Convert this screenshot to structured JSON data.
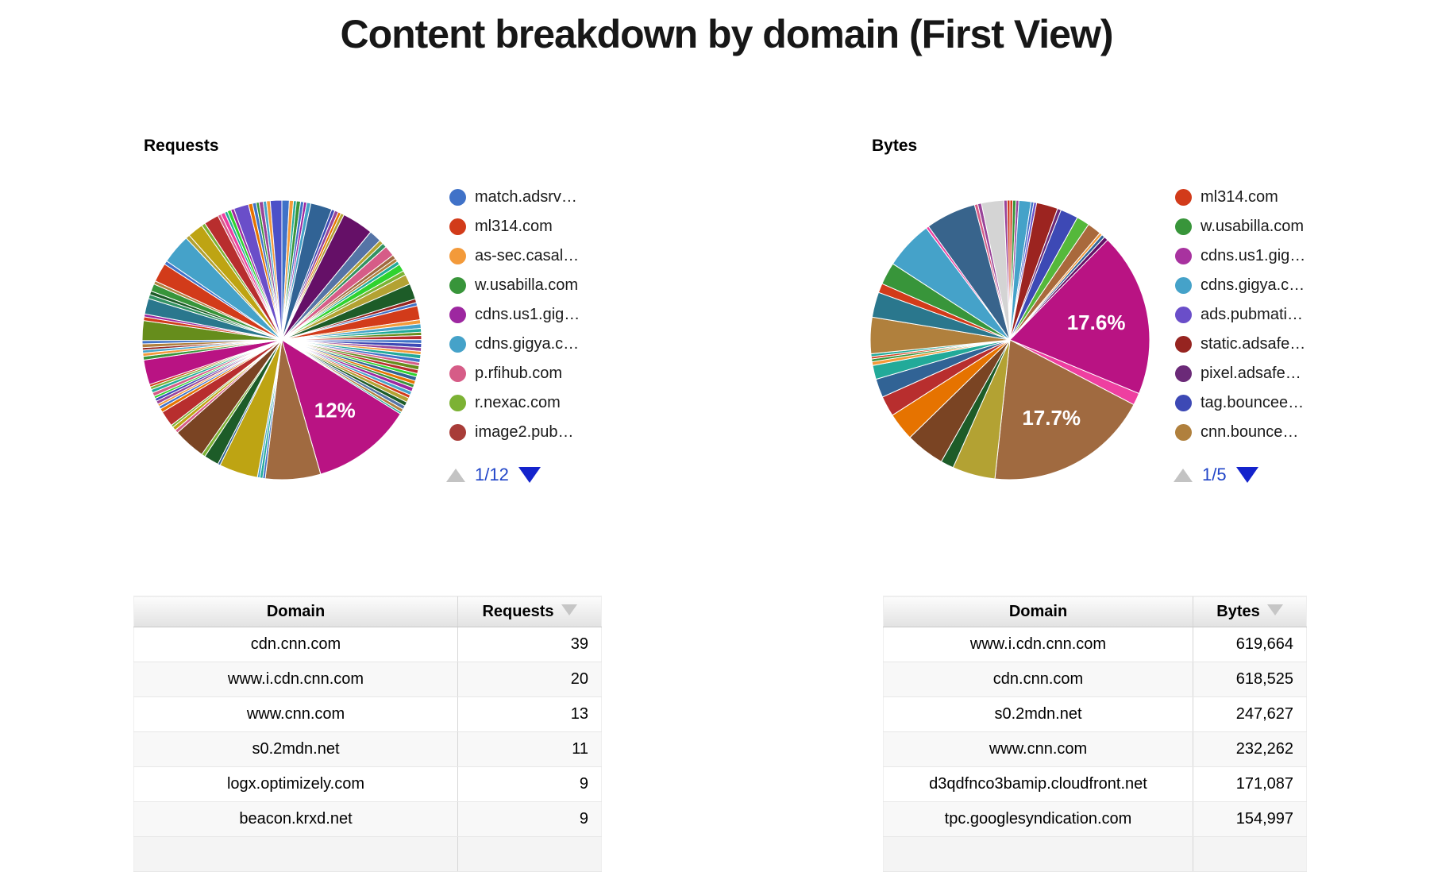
{
  "title": "Content breakdown by domain (First View)",
  "charts": [
    {
      "label": "Requests",
      "pager": {
        "up_icon": "triangle-up",
        "down_icon": "triangle-down"
      },
      "chart_data": {
        "type": "pie",
        "title": "Requests",
        "unit": "share of requests (%)",
        "legend_page": "1/12",
        "legend_visible": [
          {
            "label": "match.adsrv…",
            "color": "#4072c8"
          },
          {
            "label": "ml314.com",
            "color": "#d23b1a"
          },
          {
            "label": "as-sec.casal…",
            "color": "#f39a3a"
          },
          {
            "label": "w.usabilla.com",
            "color": "#38953a"
          },
          {
            "label": "cdns.us1.gig…",
            "color": "#9d27a0"
          },
          {
            "label": "cdns.gigya.c…",
            "color": "#45a2c9"
          },
          {
            "label": "p.rfihub.com",
            "color": "#d65c87"
          },
          {
            "label": "r.nexac.com",
            "color": "#7cb234"
          },
          {
            "label": "image2.pub…",
            "color": "#a83c38"
          }
        ],
        "slices": [
          [
            0.9,
            "#4072c8"
          ],
          [
            0.5,
            "#f39a3a"
          ],
          [
            0.35,
            "#22aa99"
          ],
          [
            0.5,
            "#38953a"
          ],
          [
            0.4,
            "#4072c8"
          ],
          [
            0.35,
            "#9d27a0"
          ],
          [
            0.5,
            "#45a2c9"
          ],
          [
            2.6,
            "#316395"
          ],
          [
            0.4,
            "#3d49b5"
          ],
          [
            0.45,
            "#994499"
          ],
          [
            0.35,
            "#e67300"
          ],
          [
            0.4,
            "#b3a233"
          ],
          [
            3.8,
            "#651067"
          ],
          [
            1.5,
            "#5574a6"
          ],
          [
            0.5,
            "#b3a233"
          ],
          [
            0.55,
            "#329262"
          ],
          [
            1.3,
            "#d65c87"
          ],
          [
            0.5,
            "#a06a40"
          ],
          [
            0.4,
            "#b0803d"
          ],
          [
            0.45,
            "#22aa99"
          ],
          [
            0.9,
            "#2fd32f"
          ],
          [
            0.55,
            "#7cb234"
          ],
          [
            1.2,
            "#b3a233"
          ],
          [
            1.9,
            "#1d5c28"
          ],
          [
            0.45,
            "#962420"
          ],
          [
            0.4,
            "#4072c8"
          ],
          [
            1.7,
            "#d23b1a"
          ],
          [
            0.5,
            "#f39a3a"
          ],
          [
            0.55,
            "#45a2c9"
          ],
          [
            0.45,
            "#22aa99"
          ],
          [
            0.4,
            "#668d1c"
          ],
          [
            0.5,
            "#b82e2e"
          ],
          [
            0.45,
            "#4072c8"
          ],
          [
            0.5,
            "#3d49b5"
          ],
          [
            0.45,
            "#994499"
          ],
          [
            0.4,
            "#f39a3a"
          ],
          [
            0.5,
            "#22aa99"
          ],
          [
            0.45,
            "#4072c8"
          ],
          [
            0.4,
            "#d65c87"
          ],
          [
            0.5,
            "#668d1c"
          ],
          [
            0.45,
            "#b82e2e"
          ],
          [
            0.4,
            "#2fd32f"
          ],
          [
            0.5,
            "#316395"
          ],
          [
            0.45,
            "#e67300"
          ],
          [
            0.4,
            "#38953a"
          ],
          [
            0.5,
            "#9d27a0"
          ],
          [
            0.45,
            "#45a2c9"
          ],
          [
            0.4,
            "#d23b1a"
          ],
          [
            0.55,
            "#b3a233"
          ],
          [
            0.5,
            "#1d5c28"
          ],
          [
            0.45,
            "#5574a6"
          ],
          [
            0.4,
            "#b0803d"
          ],
          [
            0.25,
            "#22aa99"
          ],
          [
            12.2,
            "#b91383",
            "12%"
          ],
          [
            6.7,
            "#a06a40"
          ],
          [
            0.3,
            "#4072c8"
          ],
          [
            0.35,
            "#22aa99"
          ],
          [
            0.3,
            "#45a2c9"
          ],
          [
            4.7,
            "#bea413"
          ],
          [
            0.3,
            "#316395"
          ],
          [
            1.8,
            "#1d5c28"
          ],
          [
            0.45,
            "#7cb234"
          ],
          [
            3.9,
            "#7a4423"
          ],
          [
            0.4,
            "#d65c87"
          ],
          [
            0.45,
            "#bea413"
          ],
          [
            0.3,
            "#7cb234"
          ],
          [
            1.9,
            "#b82e2e"
          ],
          [
            0.45,
            "#e67300"
          ],
          [
            0.35,
            "#4072c8"
          ],
          [
            0.3,
            "#f39a3a"
          ],
          [
            0.4,
            "#994499"
          ],
          [
            0.35,
            "#3d49b5"
          ],
          [
            0.3,
            "#2fd32f"
          ],
          [
            0.45,
            "#d65c87"
          ],
          [
            0.4,
            "#22aa99"
          ],
          [
            0.35,
            "#7cb234"
          ],
          [
            0.3,
            "#d23b1a"
          ],
          [
            3.0,
            "#b91383"
          ],
          [
            0.45,
            "#38953a"
          ],
          [
            0.4,
            "#f39a3a"
          ],
          [
            0.35,
            "#45a2c9"
          ],
          [
            0.3,
            "#962420"
          ],
          [
            0.45,
            "#b0803d"
          ],
          [
            0.4,
            "#4072c8"
          ],
          [
            2.4,
            "#668d1c"
          ],
          [
            0.45,
            "#d23b1a"
          ],
          [
            0.35,
            "#9d27a0"
          ],
          [
            1.9,
            "#2a778d"
          ],
          [
            0.5,
            "#329262"
          ],
          [
            0.45,
            "#1d5c28"
          ],
          [
            0.9,
            "#38953a"
          ],
          [
            0.4,
            "#b0803d"
          ],
          [
            2.3,
            "#d23b1a"
          ],
          [
            0.45,
            "#4072c8"
          ],
          [
            3.6,
            "#45a2c9"
          ],
          [
            0.5,
            "#b3a233"
          ],
          [
            1.9,
            "#bea413"
          ],
          [
            0.45,
            "#7cb234"
          ],
          [
            1.8,
            "#b82e2e"
          ],
          [
            0.4,
            "#d65c87"
          ],
          [
            0.5,
            "#ee3fa0"
          ],
          [
            0.35,
            "#22aa99"
          ],
          [
            0.45,
            "#2fd32f"
          ],
          [
            0.4,
            "#9d27a0"
          ],
          [
            1.8,
            "#6a4ec9"
          ],
          [
            0.5,
            "#e67300"
          ],
          [
            0.45,
            "#4072c8"
          ],
          [
            0.35,
            "#38953a"
          ],
          [
            0.5,
            "#994499"
          ],
          [
            0.4,
            "#45a2c9"
          ],
          [
            0.45,
            "#f39a3a"
          ],
          [
            1.4,
            "#4b50c8"
          ]
        ]
      }
    },
    {
      "label": "Bytes",
      "pager": {
        "up_icon": "triangle-up",
        "down_icon": "triangle-down"
      },
      "chart_data": {
        "type": "pie",
        "title": "Bytes",
        "unit": "share of bytes (%)",
        "legend_page": "1/5",
        "legend_visible": [
          {
            "label": "ml314.com",
            "color": "#d23b1a"
          },
          {
            "label": "w.usabilla.com",
            "color": "#38953a"
          },
          {
            "label": "cdns.us1.gig…",
            "color": "#a8329f"
          },
          {
            "label": "cdns.gigya.c…",
            "color": "#45a2c9"
          },
          {
            "label": "ads.pubmati…",
            "color": "#6a4ec9"
          },
          {
            "label": "static.adsafe…",
            "color": "#962420"
          },
          {
            "label": "pixel.adsafe…",
            "color": "#6b2a78"
          },
          {
            "label": "tag.bouncee…",
            "color": "#3d49b5"
          },
          {
            "label": "cnn.bounce…",
            "color": "#b0803d"
          }
        ],
        "slices": [
          [
            0.3,
            "#d23b1a"
          ],
          [
            0.35,
            "#38953a"
          ],
          [
            0.3,
            "#994499"
          ],
          [
            1.3,
            "#45a2c9"
          ],
          [
            0.3,
            "#4072c8"
          ],
          [
            0.3,
            "#6a4ec9"
          ],
          [
            2.3,
            "#9c2420"
          ],
          [
            0.4,
            "#6b2a78"
          ],
          [
            1.9,
            "#3d49b5"
          ],
          [
            1.4,
            "#55b83b"
          ],
          [
            1.5,
            "#a9693c"
          ],
          [
            0.3,
            "#f39a3a"
          ],
          [
            0.35,
            "#316395"
          ],
          [
            0.45,
            "#651067"
          ],
          [
            17.6,
            "#b91383",
            "17.6%"
          ],
          [
            1.3,
            "#ee3fa0"
          ],
          [
            17.7,
            "#a06a40",
            "17.7%"
          ],
          [
            4.6,
            "#b3a233"
          ],
          [
            1.4,
            "#1d5c28"
          ],
          [
            4.2,
            "#7a4423"
          ],
          [
            3.0,
            "#e67300"
          ],
          [
            2.2,
            "#b82e2e"
          ],
          [
            2.0,
            "#316395"
          ],
          [
            1.5,
            "#22aa99"
          ],
          [
            0.4,
            "#f39a3a"
          ],
          [
            0.3,
            "#38953a"
          ],
          [
            0.25,
            "#d23b1a"
          ],
          [
            0.3,
            "#22aa99"
          ],
          [
            3.9,
            "#b0803d"
          ],
          [
            2.7,
            "#2a778d"
          ],
          [
            1.0,
            "#d23b1a"
          ],
          [
            2.4,
            "#38953a"
          ],
          [
            5.2,
            "#45a2c9"
          ],
          [
            0.3,
            "#ee3fa0"
          ],
          [
            5.4,
            "#38648c"
          ],
          [
            0.35,
            "#d65c87"
          ],
          [
            0.4,
            "#994499"
          ],
          [
            2.4,
            "#d4d4d4"
          ],
          [
            0.35,
            "#994499"
          ],
          [
            0.3,
            "#d23b1a"
          ]
        ]
      }
    }
  ],
  "tables": [
    {
      "headers": [
        "Domain",
        "Requests"
      ],
      "sorted_by": "Requests",
      "sort_direction": "desc",
      "rows": [
        [
          "cdn.cnn.com",
          "39"
        ],
        [
          "www.i.cdn.cnn.com",
          "20"
        ],
        [
          "www.cnn.com",
          "13"
        ],
        [
          "s0.2mdn.net",
          "11"
        ],
        [
          "logx.optimizely.com",
          "9"
        ],
        [
          "beacon.krxd.net",
          "9"
        ]
      ]
    },
    {
      "headers": [
        "Domain",
        "Bytes"
      ],
      "sorted_by": "Bytes",
      "sort_direction": "desc",
      "rows": [
        [
          "www.i.cdn.cnn.com",
          "619,664"
        ],
        [
          "cdn.cnn.com",
          "618,525"
        ],
        [
          "s0.2mdn.net",
          "247,627"
        ],
        [
          "www.cnn.com",
          "232,262"
        ],
        [
          "d3qdfnco3bamip.cloudfront.net",
          "171,087"
        ],
        [
          "tpc.googlesyndication.com",
          "154,997"
        ]
      ]
    }
  ]
}
